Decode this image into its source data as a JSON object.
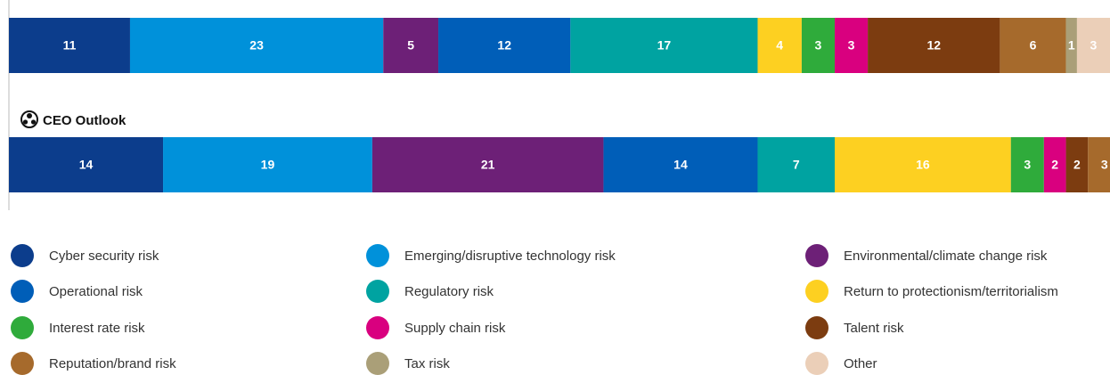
{
  "chart_data": {
    "type": "bar",
    "orientation": "horizontal",
    "stacked": true,
    "categories": [
      null,
      "CEO Outlook"
    ],
    "series": [
      {
        "name": "Cyber security risk",
        "color": "#0c3d8c",
        "values": [
          11,
          14
        ]
      },
      {
        "name": "Emerging/disruptive technology risk",
        "color": "#0091da",
        "values": [
          23,
          19
        ]
      },
      {
        "name": "Environmental/climate change risk",
        "color": "#6d2077",
        "values": [
          5,
          21
        ]
      },
      {
        "name": "Operational risk",
        "color": "#005eb8",
        "values": [
          12,
          14
        ]
      },
      {
        "name": "Regulatory risk",
        "color": "#00a3a1",
        "values": [
          17,
          7
        ]
      },
      {
        "name": "Return to protectionism/territorialism",
        "color": "#fdd021",
        "values": [
          4,
          16
        ]
      },
      {
        "name": "Interest rate risk",
        "color": "#2fab3b",
        "values": [
          3,
          3
        ]
      },
      {
        "name": "Supply chain risk",
        "color": "#d9007f",
        "values": [
          3,
          2
        ]
      },
      {
        "name": "Talent risk",
        "color": "#7c3c10",
        "values": [
          12,
          2
        ]
      },
      {
        "name": "Reputation/brand risk",
        "color": "#a66a2c",
        "values": [
          6,
          3
        ]
      },
      {
        "name": "Tax risk",
        "color": "#aa9f78",
        "values": [
          1,
          null
        ]
      },
      {
        "name": "Other",
        "color": "#ebcfb8",
        "values": [
          3,
          null
        ]
      }
    ]
  }
}
